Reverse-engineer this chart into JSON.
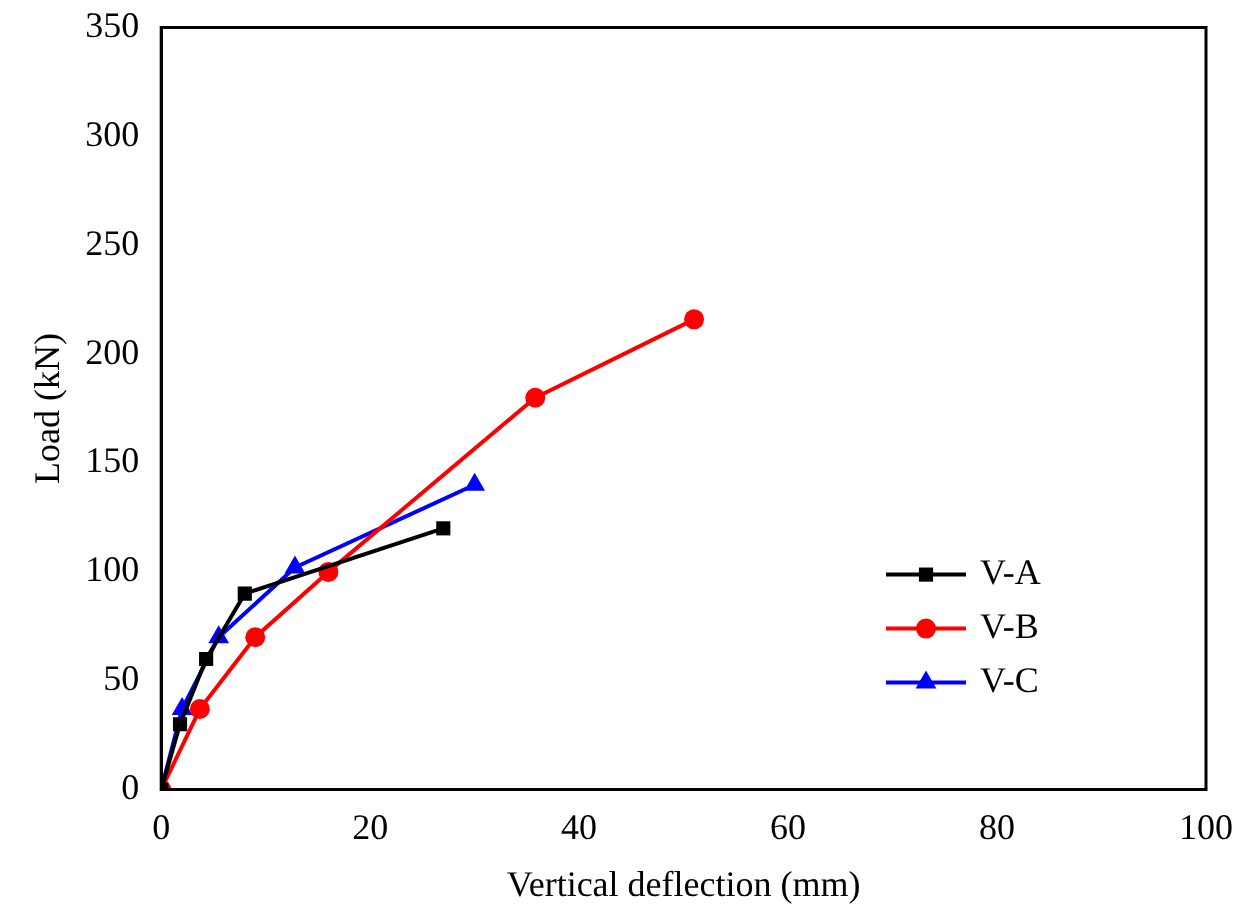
{
  "chart_data": {
    "type": "line",
    "xlabel": "Vertical deflection (mm)",
    "ylabel": "Load (kN)",
    "xlim": [
      0,
      100
    ],
    "xticks": [
      0,
      20,
      40,
      60,
      80,
      100
    ],
    "ylim": [
      0,
      350
    ],
    "yticks": [
      0,
      50,
      100,
      150,
      200,
      250,
      300,
      350
    ],
    "grid": false,
    "legend": "bottom right",
    "line_style": "solid",
    "series": [
      {
        "name": "V-A",
        "color": "#000000",
        "marker": "square",
        "x": [
          0,
          1.8,
          4.3,
          8,
          27
        ],
        "values": [
          0,
          30,
          60,
          90,
          120
        ]
      },
      {
        "name": "V-B",
        "color": "#ff0000",
        "marker": "circle",
        "x": [
          0,
          3.7,
          9,
          16,
          35.8,
          51
        ],
        "values": [
          0,
          37,
          70,
          100,
          180,
          216
        ]
      },
      {
        "name": "V-C",
        "color": "#0000ff",
        "marker": "triangle",
        "x": [
          0,
          2,
          5.5,
          12.8,
          30
        ],
        "values": [
          0,
          37,
          70,
          102,
          140
        ]
      }
    ]
  }
}
